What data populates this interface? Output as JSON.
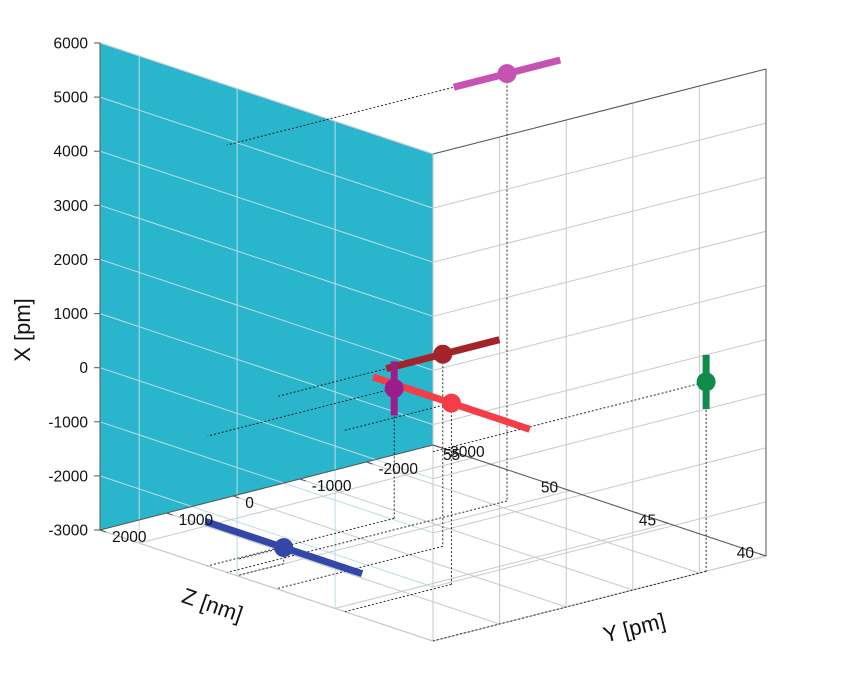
{
  "chart_data": {
    "type": "scatter",
    "projection": "3d",
    "title": "",
    "axes": {
      "x": {
        "label": "X [pm]",
        "range": [
          -3000,
          6000
        ],
        "ticks": [
          -3000,
          -2000,
          -1000,
          0,
          1000,
          2000,
          3000,
          4000,
          5000,
          6000
        ],
        "tick_labels": [
          "-3000",
          "-2000",
          "-1000",
          "0",
          "1000",
          "2000",
          "3000",
          "4000",
          "5000",
          "6000"
        ]
      },
      "y": {
        "label": "Y [pm]",
        "range": [
          -3000,
          2000
        ],
        "ticks": [
          -3000,
          -2000,
          -1000,
          0,
          1000,
          2000
        ],
        "tick_labels": [
          "-3000",
          "-2000",
          "-1000",
          "0",
          "1000",
          "2000"
        ]
      },
      "z": {
        "label": "Z [nm]",
        "range": [
          40,
          57
        ],
        "ticks": [
          40,
          45,
          50,
          55
        ],
        "tick_labels": [
          "40",
          "45",
          "50",
          "55"
        ]
      }
    },
    "grid": true,
    "back_wall_color": "#29b6cc",
    "points": [
      {
        "x": 4900,
        "y": -2200,
        "z": 50.5,
        "color": "#c653b3",
        "error_axis": "y",
        "error": 800
      },
      {
        "x": 550,
        "y": -500,
        "z": 48.0,
        "color": "#a3232a",
        "error_axis": "y",
        "error": 850
      },
      {
        "x": 350,
        "y": 400,
        "z": 44.5,
        "color": "#f53d47",
        "error_axis": "z",
        "error": 4
      },
      {
        "x": -600,
        "y": -800,
        "z": 51.5,
        "color": "#9c1c8c",
        "error_axis": "x",
        "error": 500
      },
      {
        "x": 500,
        "y": -2100,
        "z": 40.0,
        "color": "#0f8c4c",
        "error_axis": "x",
        "error": 500
      },
      {
        "x": -2700,
        "y": 1300,
        "z": 50.0,
        "color": "#3346aa",
        "error_axis": "z",
        "error": 4
      }
    ]
  }
}
